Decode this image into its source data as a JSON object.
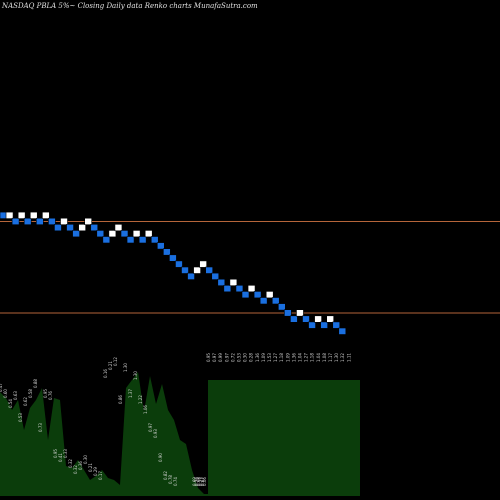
{
  "chart_data": {
    "type": "renko",
    "title": "NASDAQ PBLA  5%~  Closing Daily data  Renko  charts MunafaSutra.com",
    "brick_pct": 5,
    "colors": {
      "background": "#000000",
      "up_brick": "#ffffff",
      "down_brick": "#1a6fe0",
      "brick_border": "#000000",
      "resistance_line": "#b5653a",
      "volume_fill": "#0b3d0b",
      "volume_label": "#d8d8d8"
    },
    "bricks": [
      {
        "dir": "down",
        "level": 20
      },
      {
        "dir": "up",
        "level": 20
      },
      {
        "dir": "down",
        "level": 19
      },
      {
        "dir": "up",
        "level": 20
      },
      {
        "dir": "down",
        "level": 19
      },
      {
        "dir": "up",
        "level": 20
      },
      {
        "dir": "down",
        "level": 19
      },
      {
        "dir": "up",
        "level": 20
      },
      {
        "dir": "down",
        "level": 19
      },
      {
        "dir": "down",
        "level": 18
      },
      {
        "dir": "up",
        "level": 19
      },
      {
        "dir": "down",
        "level": 18
      },
      {
        "dir": "down",
        "level": 17
      },
      {
        "dir": "up",
        "level": 18
      },
      {
        "dir": "up",
        "level": 19
      },
      {
        "dir": "down",
        "level": 18
      },
      {
        "dir": "down",
        "level": 17
      },
      {
        "dir": "down",
        "level": 16
      },
      {
        "dir": "up",
        "level": 17
      },
      {
        "dir": "up",
        "level": 18
      },
      {
        "dir": "down",
        "level": 17
      },
      {
        "dir": "down",
        "level": 16
      },
      {
        "dir": "up",
        "level": 17
      },
      {
        "dir": "down",
        "level": 16
      },
      {
        "dir": "up",
        "level": 17
      },
      {
        "dir": "down",
        "level": 16
      },
      {
        "dir": "down",
        "level": 15
      },
      {
        "dir": "down",
        "level": 14
      },
      {
        "dir": "down",
        "level": 13
      },
      {
        "dir": "down",
        "level": 12
      },
      {
        "dir": "down",
        "level": 11
      },
      {
        "dir": "down",
        "level": 10
      },
      {
        "dir": "up",
        "level": 11
      },
      {
        "dir": "up",
        "level": 12
      },
      {
        "dir": "down",
        "level": 11
      },
      {
        "dir": "down",
        "level": 10
      },
      {
        "dir": "down",
        "level": 9
      },
      {
        "dir": "down",
        "level": 8
      },
      {
        "dir": "up",
        "level": 9
      },
      {
        "dir": "down",
        "level": 8
      },
      {
        "dir": "down",
        "level": 7
      },
      {
        "dir": "up",
        "level": 8
      },
      {
        "dir": "down",
        "level": 7
      },
      {
        "dir": "down",
        "level": 6
      },
      {
        "dir": "up",
        "level": 7
      },
      {
        "dir": "down",
        "level": 6
      },
      {
        "dir": "down",
        "level": 5
      },
      {
        "dir": "down",
        "level": 4
      },
      {
        "dir": "down",
        "level": 3
      },
      {
        "dir": "up",
        "level": 4
      },
      {
        "dir": "down",
        "level": 3
      },
      {
        "dir": "down",
        "level": 2
      },
      {
        "dir": "up",
        "level": 3
      },
      {
        "dir": "down",
        "level": 2
      },
      {
        "dir": "up",
        "level": 3
      },
      {
        "dir": "down",
        "level": 2
      },
      {
        "dir": "down",
        "level": 1
      }
    ],
    "reference_levels": [
      {
        "name": "upper-line",
        "level": 19
      },
      {
        "name": "lower-line",
        "level": 4
      }
    ],
    "volume_labels": [
      "0.47",
      "0.60",
      "0.54",
      "0.63",
      "0.53",
      "0.62",
      "0.58",
      "0.88",
      "0.73",
      "0.95",
      "0.76",
      "0.95",
      "0.41",
      "0.33",
      "0.32",
      "0.32",
      "0.36",
      "0.30",
      "0.21",
      "0.29",
      "0.17",
      "0.16",
      "0.21",
      "0.12",
      "0.86",
      "1.30",
      "1.37",
      "1.30",
      "1.22",
      "1.06",
      "0.97",
      "0.93",
      "0.90",
      "0.82",
      "0.78",
      "0.74",
      "0.69",
      "0.76",
      "0.68",
      "0.77",
      "0.67",
      "0.06",
      "0.95",
      "0.97",
      "0.99",
      "0.97",
      "0.72",
      "0.53",
      "0.30",
      "0.28",
      "1.36",
      "1.09",
      "1.53",
      "1.27",
      "1.18",
      "1.09",
      "1.36",
      "1.04",
      "1.27",
      "1.18",
      "1.04",
      "1.08",
      "1.17",
      "1.30",
      "1.32",
      "1.11"
    ]
  }
}
